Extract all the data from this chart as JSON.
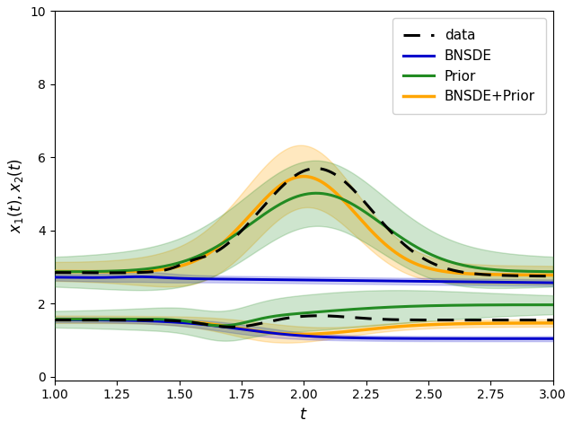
{
  "title": "",
  "xlabel": "$t$",
  "ylabel": "$x_1(t), x_2(t)$",
  "xlim": [
    1.0,
    3.0
  ],
  "ylim": [
    -0.1,
    10.0
  ],
  "yticks": [
    0,
    2,
    4,
    6,
    8,
    10
  ],
  "xticks": [
    1.0,
    1.25,
    1.5,
    1.75,
    2.0,
    2.25,
    2.5,
    2.75,
    3.0
  ],
  "colors": {
    "data": "#000000",
    "BNSDE": "#0000cc",
    "Prior": "#228B22",
    "BNSDEPrior": "#FFA500"
  },
  "band_alphas": {
    "BNSDE": 0.18,
    "Prior": 0.22,
    "BNSDEPrior": 0.25
  }
}
